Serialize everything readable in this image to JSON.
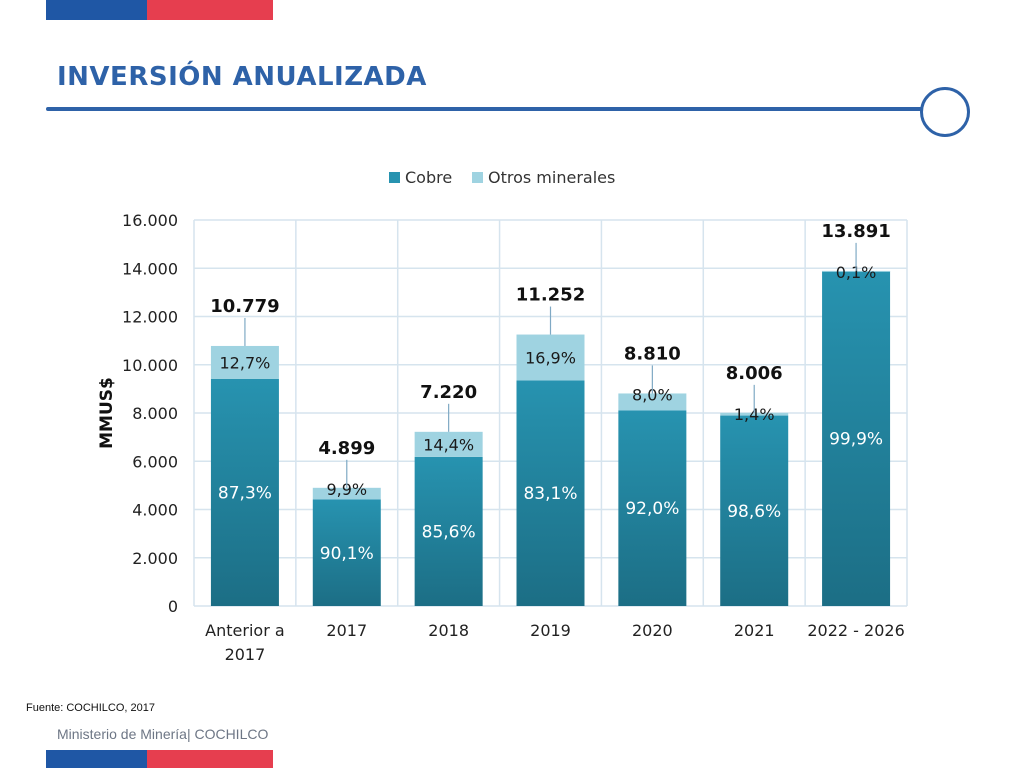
{
  "slide": {
    "title": "INVERSIÓN ANUALIZADA",
    "source": "Fuente: COCHILCO, 2017",
    "footer": "Ministerio de Minería| COCHILCO"
  },
  "colors": {
    "flag_blue": "#1f57a5",
    "flag_red": "#e63e4f",
    "title": "#2e62a8",
    "rule": "#2e62a8",
    "cobre": "#2793b0",
    "cobre_dark": "#1c6e85",
    "otros": "#9fd3e1",
    "grid": "#d6e4ee"
  },
  "chart_data": {
    "type": "bar",
    "stacked": true,
    "categories": [
      [
        "Anterior a",
        "2017"
      ],
      [
        "2017"
      ],
      [
        "2018"
      ],
      [
        "2019"
      ],
      [
        "2020"
      ],
      [
        "2021"
      ],
      [
        "2022 - 2026"
      ]
    ],
    "totals": [
      10779,
      4899,
      7220,
      11252,
      8810,
      8006,
      13891
    ],
    "total_labels": [
      "10.779",
      "4.899",
      "7.220",
      "11.252",
      "8.810",
      "8.006",
      "13.891"
    ],
    "series": [
      {
        "name": "Cobre",
        "color": "#2793b0",
        "percent_values": [
          87.3,
          90.1,
          85.6,
          83.1,
          92.0,
          98.6,
          99.9
        ],
        "labels": [
          "87,3%",
          "90,1%",
          "85,6%",
          "83,1%",
          "92,0%",
          "98,6%",
          "99,9%"
        ]
      },
      {
        "name": "Otros minerales",
        "color": "#9fd3e1",
        "percent_values": [
          12.7,
          9.9,
          14.4,
          16.9,
          8.0,
          1.4,
          0.1
        ],
        "labels": [
          "12,7%",
          "9,9%",
          "14,4%",
          "16,9%",
          "8,0%",
          "1,4%",
          "0,1%"
        ]
      }
    ],
    "ylabel": "MMUS$",
    "ylim": [
      0,
      16000
    ],
    "yticks": [
      0,
      2000,
      4000,
      6000,
      8000,
      10000,
      12000,
      14000,
      16000
    ],
    "ytick_labels": [
      "0",
      "2.000",
      "4.000",
      "6.000",
      "8.000",
      "10.000",
      "12.000",
      "14.000",
      "16.000"
    ],
    "grid": true,
    "legend_position": "top-center"
  }
}
